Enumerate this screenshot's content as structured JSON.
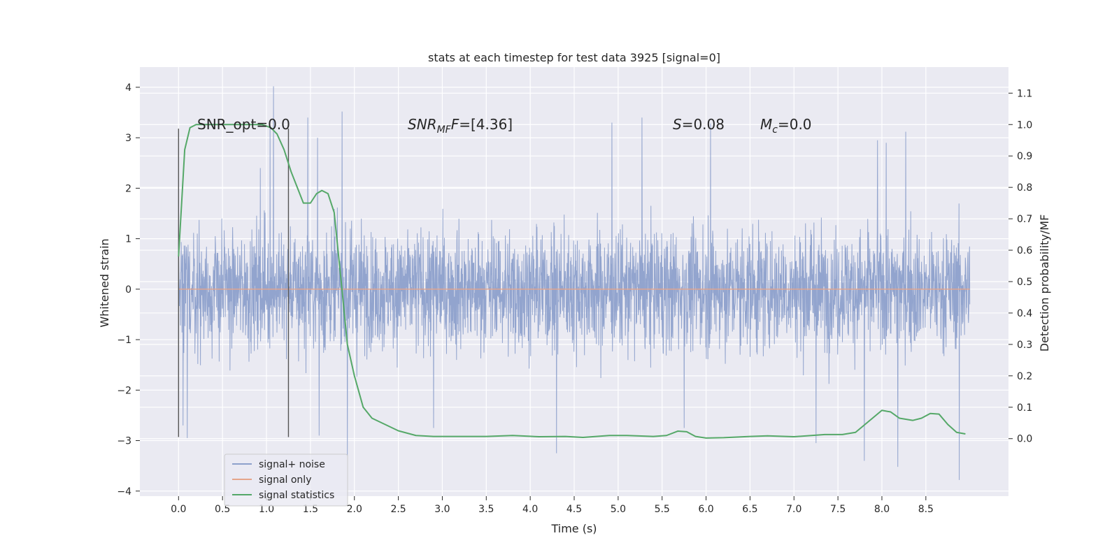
{
  "chart_data": {
    "type": "line",
    "title": "stats at each timestep for test data 3925 [signal=0]",
    "xlabel": "Time (s)",
    "ylabel": "Whitened strain",
    "y2label": "Detection probability/MF",
    "xlim": [
      -0.44,
      9.44
    ],
    "ylim": [
      -4.1,
      4.4
    ],
    "y2lim": [
      -0.183,
      1.183
    ],
    "x_ticks": [
      0.0,
      0.5,
      1.0,
      1.5,
      2.0,
      2.5,
      3.0,
      3.5,
      4.0,
      4.5,
      5.0,
      5.5,
      6.0,
      6.5,
      7.0,
      7.5,
      8.0,
      8.5
    ],
    "x_tick_labels": [
      "0.0",
      "0.5",
      "1.0",
      "1.5",
      "2.0",
      "2.5",
      "3.0",
      "3.5",
      "4.0",
      "4.5",
      "5.0",
      "5.5",
      "6.0",
      "6.5",
      "7.0",
      "7.5",
      "8.0",
      "8.5"
    ],
    "y_ticks": [
      4,
      3,
      2,
      1,
      0,
      -1,
      -2,
      -3,
      -4
    ],
    "y_tick_labels": [
      "4",
      "3",
      "2",
      "1",
      "0",
      "−1",
      "−2",
      "−3",
      "−4"
    ],
    "y2_ticks": [
      1.1,
      1.0,
      0.9,
      0.8,
      0.7,
      0.6,
      0.5,
      0.4,
      0.3,
      0.2,
      0.1,
      0.0
    ],
    "y2_tick_labels": [
      "1.1",
      "1.0",
      "0.9",
      "0.8",
      "0.7",
      "0.6",
      "0.5",
      "0.4",
      "0.3",
      "0.2",
      "0.1",
      "0.0"
    ],
    "grid": true,
    "legend_placement": "lower-left",
    "annotations": {
      "snr_opt": "SNR_opt=0.0",
      "snr_mf_main": "SNR",
      "snr_mf_sub": "MF",
      "snr_mf_rest": "=[4.36]",
      "s_main": "S",
      "s_rest": "=0.08",
      "mc_main": "M",
      "mc_sub": "c",
      "mc_rest": "=0.0"
    },
    "vertical_lines": [
      0.0,
      1.25
    ],
    "vertical_line_range": [
      -2.93,
      3.18
    ],
    "series": [
      {
        "name": "signal+ noise",
        "color": "#8da0cb",
        "axis": "left",
        "x_range": [
          0.0,
          9.0
        ],
        "noise_std": 0.95,
        "envelope": {
          "upper": [
            [
              0.0,
              2.0
            ],
            [
              2.0,
              2.5
            ],
            [
              9.0,
              2.5
            ]
          ],
          "lower": [
            [
              0.0,
              -2.8
            ],
            [
              9.0,
              -2.8
            ]
          ]
        },
        "peaks": [
          {
            "x": 1.08,
            "y": 4.02
          },
          {
            "x": 1.04,
            "y": 3.18
          },
          {
            "x": 0.93,
            "y": 2.4
          },
          {
            "x": 1.47,
            "y": 3.4
          },
          {
            "x": 1.86,
            "y": 3.52
          },
          {
            "x": 1.58,
            "y": 3.0
          },
          {
            "x": 4.93,
            "y": 3.3
          },
          {
            "x": 5.27,
            "y": 3.4
          },
          {
            "x": 6.05,
            "y": 3.28
          },
          {
            "x": 8.27,
            "y": 3.12
          },
          {
            "x": 7.95,
            "y": 2.95
          },
          {
            "x": 8.05,
            "y": 2.9
          },
          {
            "x": 0.1,
            "y": -2.95
          },
          {
            "x": 1.92,
            "y": -3.3
          },
          {
            "x": 1.6,
            "y": -2.9
          },
          {
            "x": 2.9,
            "y": -2.75
          },
          {
            "x": 4.3,
            "y": -3.25
          },
          {
            "x": 5.75,
            "y": -2.75
          },
          {
            "x": 7.8,
            "y": -3.4
          },
          {
            "x": 8.18,
            "y": -3.52
          },
          {
            "x": 8.88,
            "y": -3.78
          },
          {
            "x": 7.25,
            "y": -3.05
          },
          {
            "x": 0.05,
            "y": -2.7
          }
        ]
      },
      {
        "name": "signal only",
        "color": "#e5a58a",
        "axis": "left",
        "x": [
          0.0,
          9.0
        ],
        "y": [
          0.0,
          0.0
        ]
      },
      {
        "name": "signal statistics",
        "color": "#55a868",
        "axis": "right",
        "x": [
          0.0,
          0.07,
          0.13,
          0.2,
          0.3,
          0.5,
          0.75,
          0.95,
          1.05,
          1.12,
          1.2,
          1.28,
          1.35,
          1.42,
          1.5,
          1.57,
          1.63,
          1.7,
          1.77,
          1.85,
          1.92,
          2.0,
          2.1,
          2.2,
          2.35,
          2.5,
          2.7,
          2.9,
          3.2,
          3.5,
          3.8,
          4.1,
          4.4,
          4.6,
          4.9,
          5.1,
          5.4,
          5.55,
          5.68,
          5.78,
          5.88,
          6.0,
          6.2,
          6.5,
          6.7,
          7.0,
          7.2,
          7.35,
          7.55,
          7.7,
          7.85,
          8.0,
          8.1,
          8.2,
          8.35,
          8.45,
          8.55,
          8.65,
          8.75,
          8.85,
          8.95
        ],
        "y": [
          0.58,
          0.92,
          0.99,
          1.0,
          1.0,
          1.0,
          1.0,
          1.0,
          0.99,
          0.97,
          0.92,
          0.85,
          0.8,
          0.75,
          0.75,
          0.78,
          0.79,
          0.78,
          0.72,
          0.5,
          0.3,
          0.2,
          0.1,
          0.065,
          0.045,
          0.025,
          0.01,
          0.007,
          0.007,
          0.007,
          0.01,
          0.006,
          0.007,
          0.004,
          0.01,
          0.01,
          0.007,
          0.01,
          0.024,
          0.022,
          0.007,
          0.002,
          0.003,
          0.007,
          0.009,
          0.006,
          0.01,
          0.013,
          0.013,
          0.02,
          0.055,
          0.09,
          0.085,
          0.065,
          0.058,
          0.065,
          0.08,
          0.078,
          0.045,
          0.02,
          0.015
        ]
      }
    ]
  }
}
